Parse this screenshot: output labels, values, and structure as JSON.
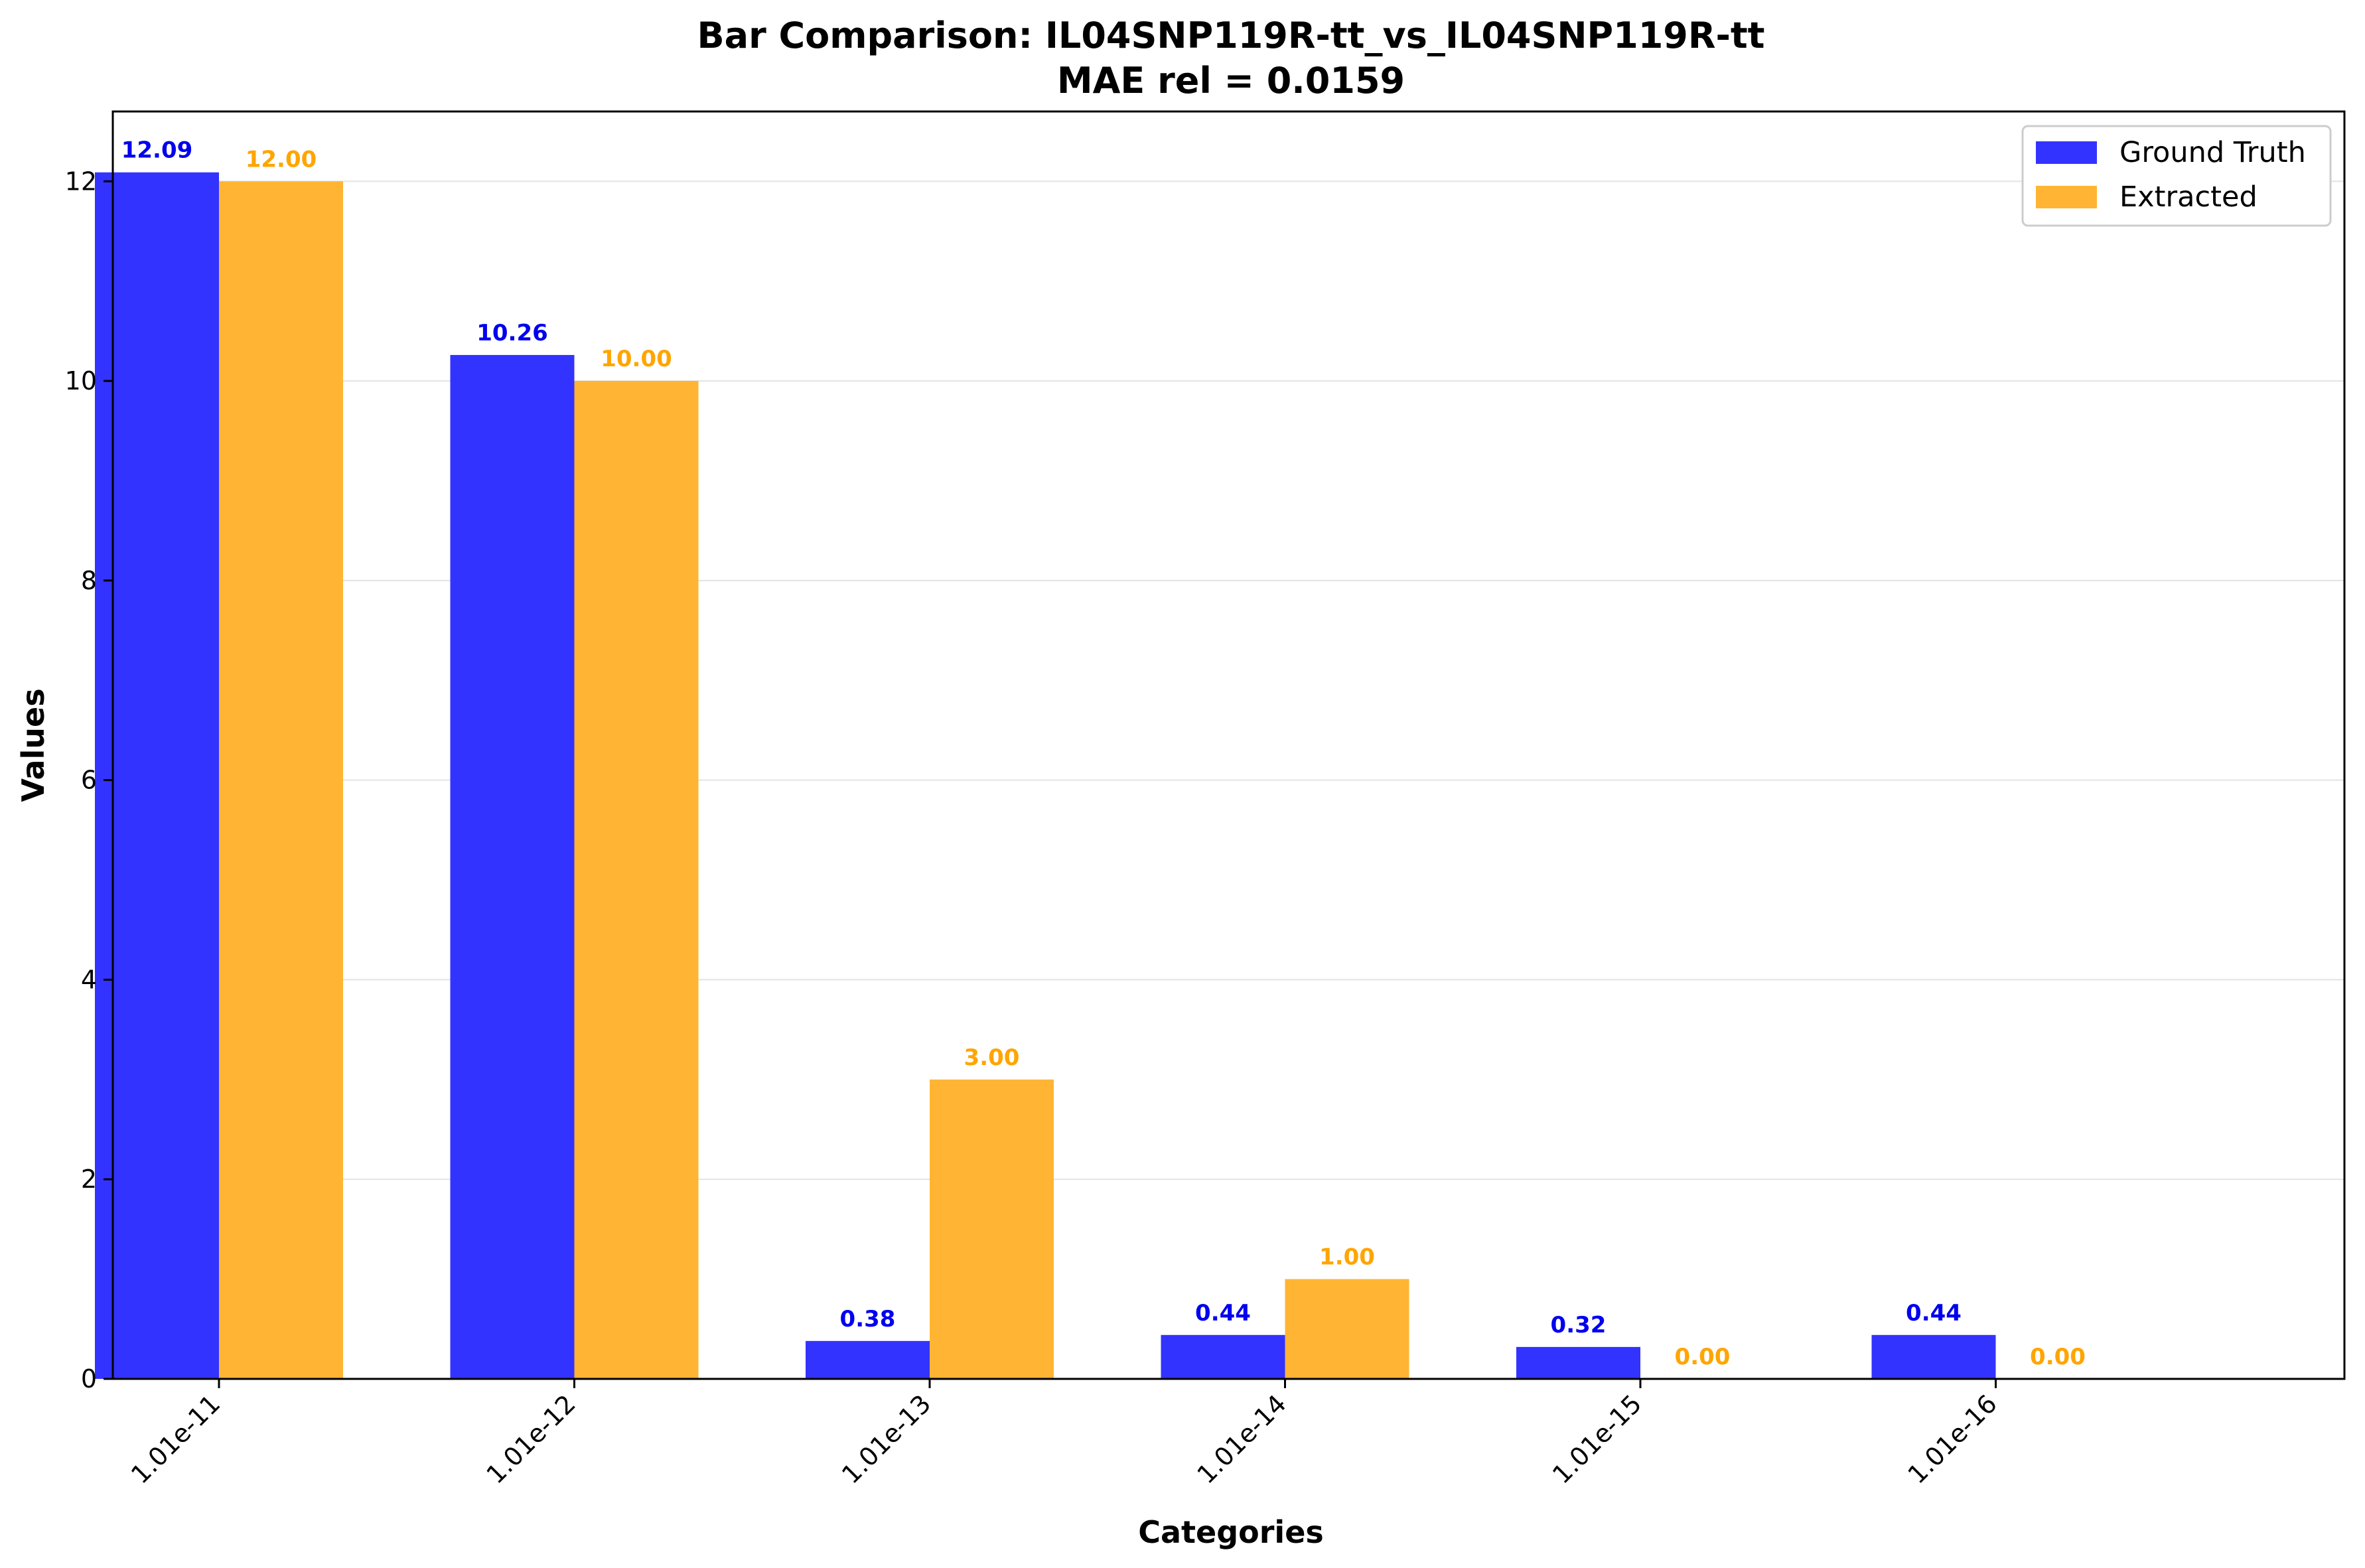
{
  "chart_data": {
    "type": "bar",
    "title": "Bar Comparison: IL04SNP119R-tt_vs_IL04SNP119R-tt",
    "subtitle": "MAE rel = 0.0159",
    "xlabel": "Categories",
    "ylabel": "Values",
    "categories": [
      "1.01e-11",
      "1.01e-12",
      "1.01e-13",
      "1.01e-14",
      "1.01e-15",
      "1.01e-16"
    ],
    "series": [
      {
        "name": "Ground Truth",
        "color": "#3333ff",
        "label_color": "#0000ee",
        "values": [
          12.09,
          10.26,
          0.38,
          0.44,
          0.32,
          0.44
        ],
        "labels": [
          "12.09",
          "10.26",
          "0.38",
          "0.44",
          "0.32",
          "0.44"
        ]
      },
      {
        "name": "Extracted",
        "color": "#ffb533",
        "label_color": "#ffa500",
        "values": [
          12.0,
          10.0,
          3.0,
          1.0,
          0.0,
          0.0
        ],
        "labels": [
          "12.00",
          "10.00",
          "3.00",
          "1.00",
          "0.00",
          "0.00"
        ]
      }
    ],
    "ylim": [
      0,
      12.7
    ],
    "yticks": [
      0,
      2,
      4,
      6,
      8,
      10,
      12
    ],
    "ytick_labels": [
      "0",
      "2",
      "4",
      "6",
      "8",
      "10",
      "12"
    ],
    "grid": "horizontal",
    "legend_position": "top-right"
  }
}
